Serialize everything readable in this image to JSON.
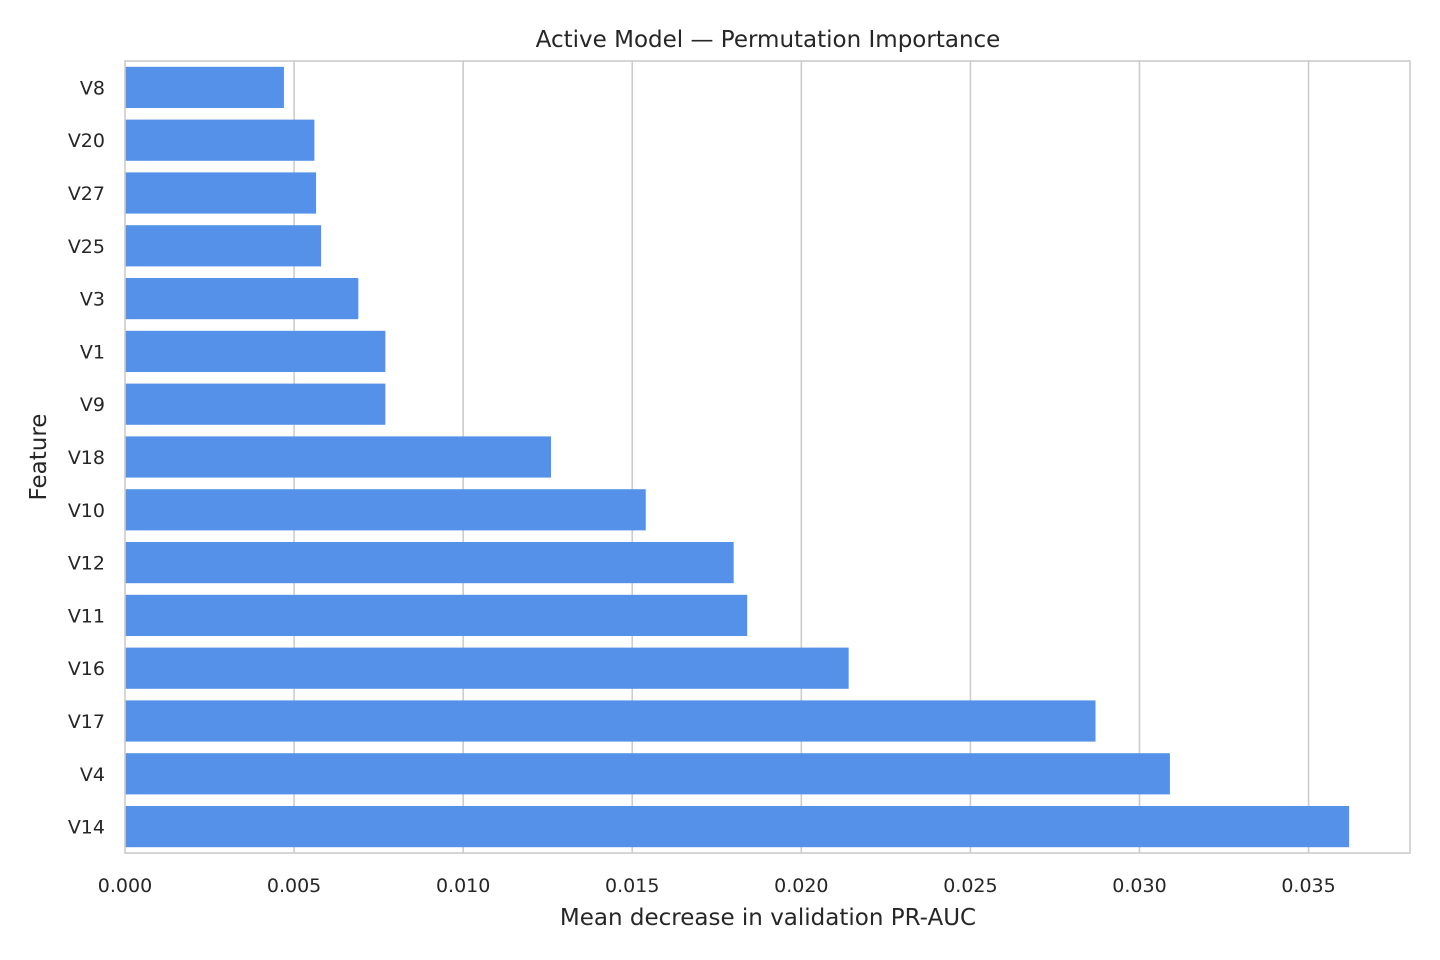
{
  "chart_data": {
    "type": "bar",
    "orientation": "horizontal",
    "title": "Active Model — Permutation Importance",
    "xlabel": "Mean decrease in validation PR-AUC",
    "ylabel": "Feature",
    "xlim": [
      0,
      0.038
    ],
    "xticks": [
      "0.000",
      "0.005",
      "0.010",
      "0.015",
      "0.020",
      "0.025",
      "0.030",
      "0.035"
    ],
    "xtick_values": [
      0,
      0.005,
      0.01,
      0.015,
      0.02,
      0.025,
      0.03,
      0.035
    ],
    "grid": "vertical",
    "bar_color": "#5591e9",
    "categories": [
      "V8",
      "V20",
      "V27",
      "V25",
      "V3",
      "V1",
      "V9",
      "V18",
      "V10",
      "V12",
      "V11",
      "V16",
      "V17",
      "V4",
      "V14"
    ],
    "values": [
      0.0047,
      0.0056,
      0.00565,
      0.0058,
      0.0069,
      0.0077,
      0.0077,
      0.0126,
      0.0154,
      0.018,
      0.0184,
      0.0214,
      0.0287,
      0.0309,
      0.0362
    ]
  }
}
